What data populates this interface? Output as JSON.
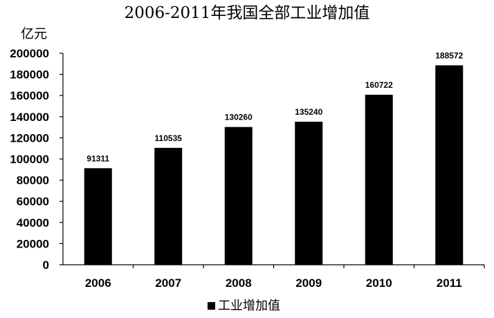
{
  "chart_data": {
    "type": "bar",
    "title": "2006-2011年我国全部工业增加值",
    "ylabel": "亿元",
    "xlabel": "",
    "categories": [
      "2006",
      "2007",
      "2008",
      "2009",
      "2010",
      "2011"
    ],
    "series": [
      {
        "name": "工业增加值",
        "values": [
          91311,
          110535,
          130260,
          135240,
          160722,
          188572
        ]
      }
    ],
    "data_labels": [
      "91311",
      "110535",
      "130260",
      "135240",
      "160722",
      "188572"
    ],
    "ylim": [
      0,
      200000
    ],
    "yticks": [
      "0",
      "20000",
      "40000",
      "60000",
      "80000",
      "100000",
      "120000",
      "140000",
      "160000",
      "180000",
      "200000"
    ],
    "legend_position": "bottom",
    "grid": false,
    "bar_color": "#000000"
  }
}
